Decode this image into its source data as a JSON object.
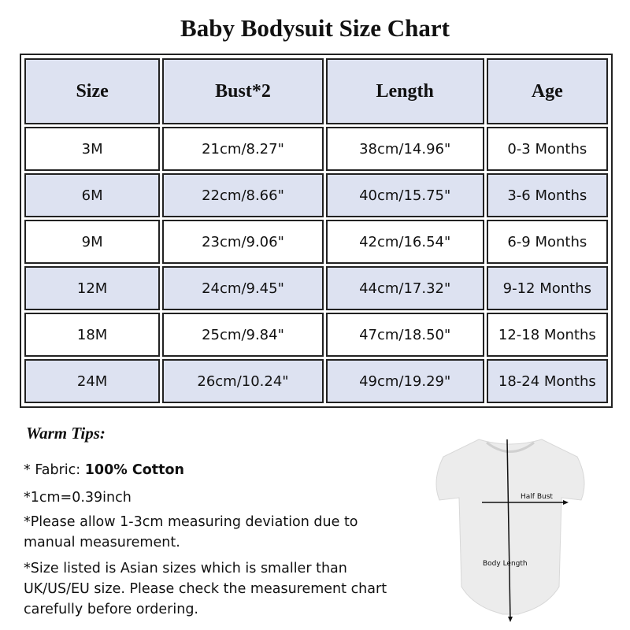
{
  "title": "Baby Bodysuit Size Chart",
  "table": {
    "headers": [
      "Size",
      "Bust*2",
      "Length",
      "Age"
    ],
    "rows": [
      [
        "3M",
        "21cm/8.27\"",
        "38cm/14.96\"",
        "0-3 Months"
      ],
      [
        "6M",
        "22cm/8.66\"",
        "40cm/15.75\"",
        "3-6 Months"
      ],
      [
        "9M",
        "23cm/9.06\"",
        "42cm/16.54\"",
        "6-9 Months"
      ],
      [
        "12M",
        "24cm/9.45\"",
        "44cm/17.32\"",
        "9-12 Months"
      ],
      [
        "18M",
        "25cm/9.84\"",
        "47cm/18.50\"",
        "12-18 Months"
      ],
      [
        "24M",
        "26cm/10.24\"",
        "49cm/19.29\"",
        "18-24 Months"
      ]
    ]
  },
  "tips": {
    "title": "Warm Tips:",
    "fabric_prefix": "* Fabric: ",
    "fabric_value": "100% Cotton",
    "conversion": "*1cm=0.39inch",
    "deviation": "*Please allow 1-3cm measuring deviation due to manual measurement.",
    "asian_size": "*Size listed is Asian sizes which is smaller than UK/US/EU size. Please check the measurement chart carefully before ordering."
  },
  "diagram": {
    "half_bust": "Half Bust",
    "body_length": "Body Length"
  },
  "colors": {
    "header_bg": "#dde2f1",
    "border": "#222222"
  }
}
